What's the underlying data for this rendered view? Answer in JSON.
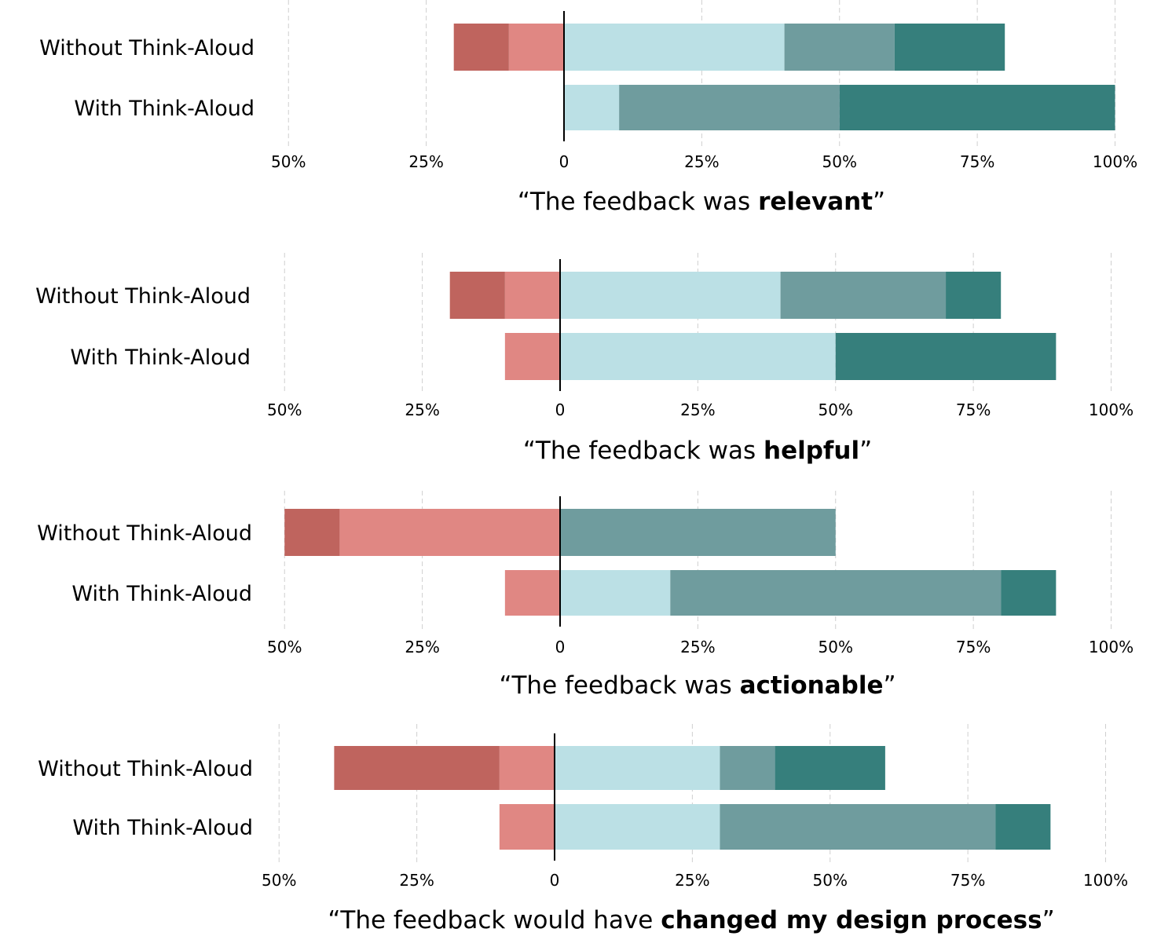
{
  "colors": [
    "#bf645e",
    "#e08783",
    "#bbe0e5",
    "#6f9c9e",
    "#367f7c"
  ],
  "chart_data": [
    {
      "type": "bar",
      "orientation": "horizontal-diverging-stacked",
      "title": {
        "prefix": "“The feedback was ",
        "bold": "relevant",
        "suffix": "”"
      },
      "categories": [
        "Without Think-Aloud",
        "With Think-Aloud"
      ],
      "values": [
        [
          10,
          10,
          40,
          20,
          20
        ],
        [
          0,
          0,
          10,
          40,
          50
        ]
      ],
      "xlim": [
        -50,
        100
      ],
      "tick_values": [
        -50,
        -25,
        0,
        25,
        50,
        75,
        100
      ],
      "tick_labels": [
        "50%",
        "25%",
        "0",
        "25%",
        "50%",
        "75%",
        "100%"
      ],
      "grid": true
    },
    {
      "type": "bar",
      "orientation": "horizontal-diverging-stacked",
      "title": {
        "prefix": "“The feedback was ",
        "bold": "helpful",
        "suffix": "”"
      },
      "categories": [
        "Without Think-Aloud",
        "With Think-Aloud"
      ],
      "values": [
        [
          10,
          10,
          40,
          30,
          10
        ],
        [
          0,
          10,
          50,
          0,
          40
        ]
      ],
      "xlim": [
        -50,
        100
      ],
      "tick_values": [
        -50,
        -25,
        0,
        25,
        50,
        75,
        100
      ],
      "tick_labels": [
        "50%",
        "25%",
        "0",
        "25%",
        "50%",
        "75%",
        "100%"
      ],
      "grid": true
    },
    {
      "type": "bar",
      "orientation": "horizontal-diverging-stacked",
      "title": {
        "prefix": "“The feedback was ",
        "bold": "actionable",
        "suffix": "”"
      },
      "categories": [
        "Without Think-Aloud",
        "With Think-Aloud"
      ],
      "values": [
        [
          10,
          40,
          0,
          50,
          0
        ],
        [
          0,
          10,
          20,
          60,
          10
        ]
      ],
      "xlim": [
        -50,
        100
      ],
      "tick_values": [
        -50,
        -25,
        0,
        25,
        50,
        75,
        100
      ],
      "tick_labels": [
        "50%",
        "25%",
        "0",
        "25%",
        "50%",
        "75%",
        "100%"
      ],
      "grid": true
    },
    {
      "type": "bar",
      "orientation": "horizontal-diverging-stacked",
      "title": {
        "prefix": "“The feedback would have ",
        "bold": "changed my design process",
        "suffix": "”"
      },
      "categories": [
        "Without Think-Aloud",
        "With Think-Aloud"
      ],
      "values": [
        [
          30,
          10,
          30,
          10,
          20
        ],
        [
          0,
          10,
          30,
          50,
          10
        ]
      ],
      "xlim": [
        -50,
        100
      ],
      "tick_values": [
        -50,
        -25,
        0,
        25,
        50,
        75,
        100
      ],
      "tick_labels": [
        "50%",
        "25%",
        "0",
        "25%",
        "50%",
        "75%",
        "100%"
      ],
      "grid": true
    }
  ]
}
